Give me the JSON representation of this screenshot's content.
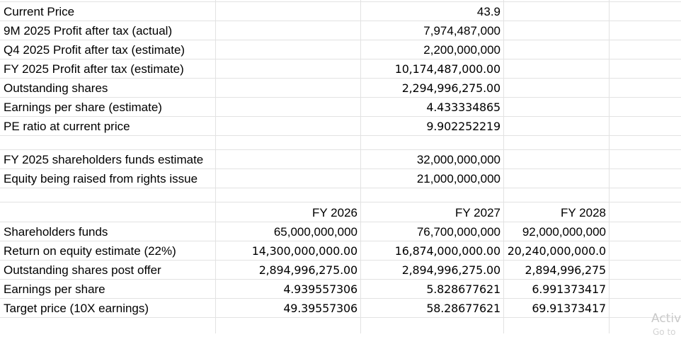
{
  "section1": {
    "rows": [
      {
        "label": "Current Price",
        "value": "43.9"
      },
      {
        "label": "9M 2025 Profit after tax (actual)",
        "value": "7,974,487,000"
      },
      {
        "label": "Q4 2025 Profit after tax (estimate)",
        "value": "2,200,000,000"
      },
      {
        "label": "FY 2025 Profit after tax (estimate)",
        "value": "10,174,487,000.00"
      },
      {
        "label": "Outstanding shares",
        "value": "2,294,996,275.00"
      },
      {
        "label": "Earnings per share (estimate)",
        "value": "4.433334865"
      },
      {
        "label": "PE ratio at current price",
        "value": "9.902252219"
      }
    ]
  },
  "section2": {
    "rows": [
      {
        "label": "FY 2025 shareholders funds estimate",
        "value": "32,000,000,000"
      },
      {
        "label": "Equity being raised from rights issue",
        "value": "21,000,000,000"
      }
    ]
  },
  "section3": {
    "headers": [
      "FY 2026",
      "FY 2027",
      "FY 2028"
    ],
    "rows": [
      {
        "label": "Shareholders funds",
        "values": [
          "65,000,000,000",
          "76,700,000,000",
          "92,000,000,000"
        ]
      },
      {
        "label": "Return on equity estimate (22%)",
        "values": [
          "14,300,000,000.00",
          "16,874,000,000.00",
          "20,240,000,000.0"
        ]
      },
      {
        "label": "Outstanding shares post offer",
        "values": [
          "2,894,996,275.00",
          "2,894,996,275.00",
          "2,894,996,275"
        ]
      },
      {
        "label": "Earnings per share",
        "values": [
          "4.939557306",
          "5.828677621",
          "6.991373417"
        ]
      },
      {
        "label": "Target price (10X earnings)",
        "values": [
          "49.39557306",
          "58.28677621",
          "69.91373417"
        ]
      }
    ]
  },
  "overlay": {
    "watermark_line1": "Activ",
    "watermark_line2": "Go to"
  }
}
